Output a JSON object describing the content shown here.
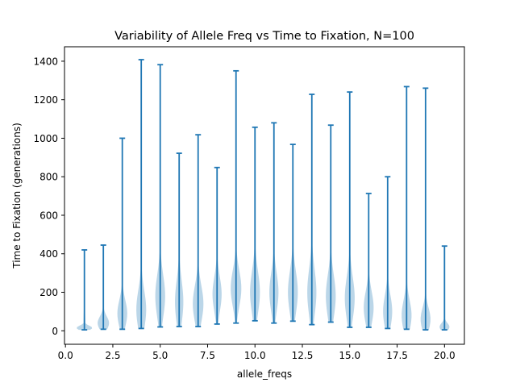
{
  "chart_data": {
    "type": "violin",
    "title": "Variability of Allele Freq vs Time to Fixation, N=100",
    "xlabel": "allele_freqs",
    "ylabel": "Time to Fixation (generations)",
    "xlim": [
      -0.05,
      21.05
    ],
    "ylim": [
      -70,
      1475
    ],
    "xticks": [
      0.0,
      2.5,
      5.0,
      7.5,
      10.0,
      12.5,
      15.0,
      17.5,
      20.0
    ],
    "xtick_labels": [
      "0.0",
      "2.5",
      "5.0",
      "7.5",
      "10.0",
      "12.5",
      "15.0",
      "17.5",
      "20.0"
    ],
    "yticks": [
      0,
      200,
      400,
      600,
      800,
      1000,
      1200,
      1400
    ],
    "ytick_labels": [
      "0",
      "200",
      "400",
      "600",
      "800",
      "1000",
      "1200",
      "1400"
    ],
    "color": "#1f77b4",
    "grid": false,
    "legend": "none",
    "violins": [
      {
        "x": 1,
        "min": 5,
        "max": 420,
        "peak": 15,
        "spread": 12,
        "width": 0.4
      },
      {
        "x": 2,
        "min": 8,
        "max": 445,
        "peak": 40,
        "spread": 35,
        "width": 0.3
      },
      {
        "x": 3,
        "min": 8,
        "max": 1000,
        "peak": 90,
        "spread": 70,
        "width": 0.26
      },
      {
        "x": 4,
        "min": 12,
        "max": 1408,
        "peak": 110,
        "spread": 100,
        "width": 0.26
      },
      {
        "x": 5,
        "min": 20,
        "max": 1382,
        "peak": 180,
        "spread": 110,
        "width": 0.26
      },
      {
        "x": 6,
        "min": 22,
        "max": 922,
        "peak": 150,
        "spread": 110,
        "width": 0.22
      },
      {
        "x": 7,
        "min": 22,
        "max": 1018,
        "peak": 140,
        "spread": 95,
        "width": 0.28
      },
      {
        "x": 8,
        "min": 35,
        "max": 848,
        "peak": 190,
        "spread": 90,
        "width": 0.24
      },
      {
        "x": 9,
        "min": 40,
        "max": 1350,
        "peak": 220,
        "spread": 95,
        "width": 0.28
      },
      {
        "x": 10,
        "min": 52,
        "max": 1057,
        "peak": 200,
        "spread": 110,
        "width": 0.26
      },
      {
        "x": 11,
        "min": 40,
        "max": 1080,
        "peak": 200,
        "spread": 100,
        "width": 0.24
      },
      {
        "x": 12,
        "min": 50,
        "max": 968,
        "peak": 200,
        "spread": 110,
        "width": 0.26
      },
      {
        "x": 13,
        "min": 32,
        "max": 1228,
        "peak": 200,
        "spread": 120,
        "width": 0.24
      },
      {
        "x": 14,
        "min": 45,
        "max": 1068,
        "peak": 180,
        "spread": 110,
        "width": 0.26
      },
      {
        "x": 15,
        "min": 18,
        "max": 1240,
        "peak": 170,
        "spread": 110,
        "width": 0.26
      },
      {
        "x": 16,
        "min": 18,
        "max": 713,
        "peak": 120,
        "spread": 85,
        "width": 0.26
      },
      {
        "x": 17,
        "min": 12,
        "max": 800,
        "peak": 100,
        "spread": 85,
        "width": 0.24
      },
      {
        "x": 18,
        "min": 8,
        "max": 1268,
        "peak": 80,
        "spread": 80,
        "width": 0.26
      },
      {
        "x": 19,
        "min": 5,
        "max": 1260,
        "peak": 60,
        "spread": 60,
        "width": 0.26
      },
      {
        "x": 20,
        "min": 5,
        "max": 440,
        "peak": 20,
        "spread": 20,
        "width": 0.26
      }
    ]
  }
}
